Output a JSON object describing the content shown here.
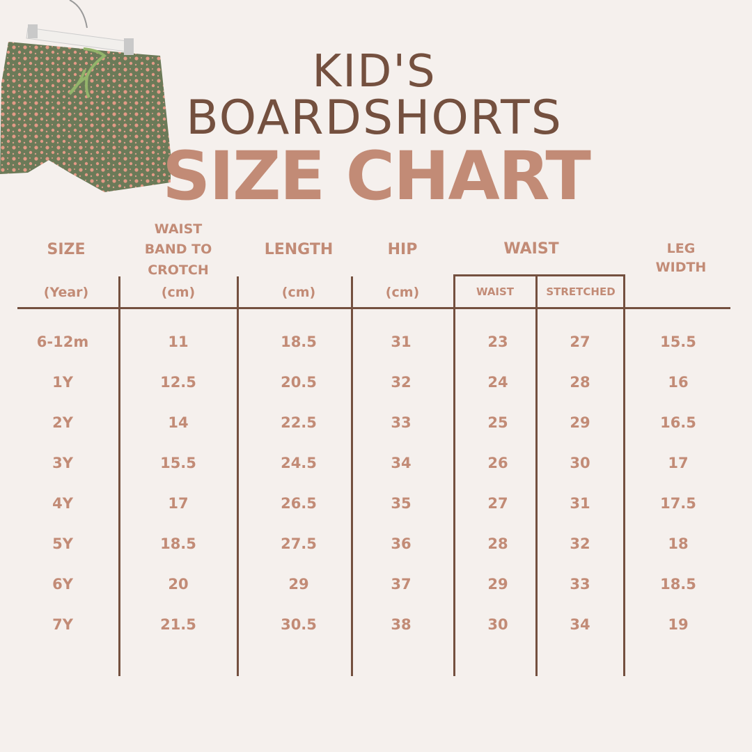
{
  "title": {
    "line1": "KID'S",
    "line2": "BOARDSHORTS",
    "line3": "SIZE CHART"
  },
  "colors": {
    "background": "#f5f0ed",
    "brown": "#74503f",
    "accent": "#c28b76"
  },
  "headers": {
    "size": "SIZE",
    "size_unit": "(Year)",
    "waistband": [
      "WAIST",
      "BAND TO",
      "CROTCH"
    ],
    "waistband_unit": "(cm)",
    "length": "LENGTH",
    "length_unit": "(cm)",
    "hip": "HIP",
    "hip_unit": "(cm)",
    "waist": "WAIST",
    "waist_sub": "WAIST",
    "stretched_sub": "STRETCHED",
    "leg": [
      "LEG",
      "WIDTH"
    ]
  },
  "rows": [
    [
      "6-12m",
      "11",
      "18.5",
      "31",
      "23",
      "27",
      "15.5"
    ],
    [
      "1Y",
      "12.5",
      "20.5",
      "32",
      "24",
      "28",
      "16"
    ],
    [
      "2Y",
      "14",
      "22.5",
      "33",
      "25",
      "29",
      "16.5"
    ],
    [
      "3Y",
      "15.5",
      "24.5",
      "34",
      "26",
      "30",
      "17"
    ],
    [
      "4Y",
      "17",
      "26.5",
      "35",
      "27",
      "31",
      "17.5"
    ],
    [
      "5Y",
      "18.5",
      "27.5",
      "36",
      "28",
      "32",
      "18"
    ],
    [
      "6Y",
      "20",
      "29",
      "37",
      "29",
      "33",
      "18.5"
    ],
    [
      "7Y",
      "21.5",
      "30.5",
      "38",
      "30",
      "34",
      "19"
    ]
  ]
}
